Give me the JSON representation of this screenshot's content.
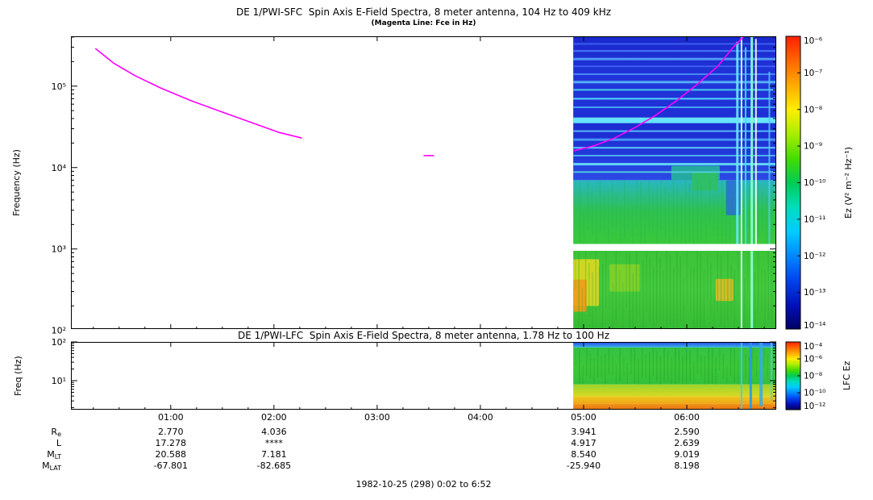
{
  "caption": {
    "text": "1982-10-25 (298) 0:02 to 6:52"
  },
  "ephemeris": {
    "rows": [
      {
        "label": "R",
        "sub": "e",
        "values": [
          "2.770",
          "4.036",
          "",
          "",
          "3.941",
          "2.590"
        ]
      },
      {
        "label": "L",
        "sub": "",
        "values": [
          "17.278",
          "****",
          "",
          "",
          "4.917",
          "2.639"
        ]
      },
      {
        "label": "M",
        "sub": "LT",
        "values": [
          "20.588",
          "7.181",
          "",
          "",
          "8.540",
          "9.019"
        ]
      },
      {
        "label": "M",
        "sub": "LAT",
        "values": [
          "-67.801",
          "-82.685",
          "",
          "",
          "-25.940",
          "8.198"
        ]
      }
    ],
    "value_hours": [
      1,
      2,
      3,
      4,
      5,
      6
    ]
  },
  "chart_data": [
    {
      "type": "heatmap",
      "name": "sfc-spectrogram",
      "title": "DE 1/PWI-SFC  Spin Axis E-Field Spectra, 8 meter antenna, 104 Hz to 409 kHz",
      "subtitle": "(Magenta Line: Fce in Hz)",
      "ylabel": "Frequency (Hz)",
      "y_scale": "log",
      "x_range_hours": [
        0.033,
        6.867
      ],
      "y_range_hz": [
        104,
        409000
      ],
      "ytick_exps": [
        5,
        4,
        3,
        2
      ],
      "xticks": [
        {
          "hour": 1,
          "label": "01:00"
        },
        {
          "hour": 2,
          "label": "02:00"
        },
        {
          "hour": 3,
          "label": "03:00"
        },
        {
          "hour": 4,
          "label": "04:00"
        },
        {
          "hour": 5,
          "label": "05:00"
        },
        {
          "hour": 6,
          "label": "06:00"
        }
      ],
      "data_start_hour": 4.9,
      "colorbar": {
        "label": "Ez (V² m⁻² Hz⁻¹)",
        "tick_exps": [
          -6,
          -7,
          -8,
          -9,
          -10,
          -11,
          -12,
          -13,
          -14
        ],
        "colors": [
          "#ff2000",
          "#ff6600",
          "#ffaa00",
          "#ffee00",
          "#aaee00",
          "#44dd00",
          "#00cc55",
          "#00ddbb",
          "#00ccff",
          "#0088ff",
          "#0044ee",
          "#0011bb",
          "#000066"
        ]
      },
      "fce_color": "#ff00ff",
      "fce_segments_hour_hz": [
        [
          [
            0.27,
            290000
          ],
          [
            0.45,
            190000
          ],
          [
            0.65,
            135000
          ],
          [
            0.9,
            95000
          ],
          [
            1.2,
            66000
          ],
          [
            1.5,
            48000
          ],
          [
            1.8,
            35000
          ],
          [
            2.05,
            27000
          ],
          [
            2.27,
            23000
          ]
        ],
        [
          [
            3.45,
            14000
          ],
          [
            3.55,
            14000
          ]
        ],
        [
          [
            4.9,
            16000
          ],
          [
            5.1,
            18500
          ],
          [
            5.3,
            23000
          ],
          [
            5.5,
            31000
          ],
          [
            5.7,
            44000
          ],
          [
            5.9,
            66000
          ],
          [
            6.1,
            105000
          ],
          [
            6.3,
            175000
          ],
          [
            6.45,
            300000
          ],
          [
            6.55,
            405000
          ]
        ]
      ],
      "bands": [
        {
          "f_top": 409000,
          "f_bot": 7000,
          "colors": [
            "#1a28cc",
            "#2136da",
            "#1c2cd2",
            "#2b4ae4"
          ]
        },
        {
          "f_top": 7000,
          "f_bot": 1150,
          "colors": [
            "#28b6c2",
            "#2fc24e",
            "#3ac83a"
          ]
        },
        {
          "f_top": 950,
          "f_bot": 104,
          "colors": [
            "#3cc438",
            "#44ca3e",
            "#36bc34"
          ]
        }
      ],
      "gaps": [
        {
          "f_top": 1150,
          "f_bot": 950
        }
      ],
      "stripes": [
        {
          "f": 330000,
          "h": 2,
          "color": "#3d62ee"
        },
        {
          "f": 270000,
          "h": 2,
          "color": "#4a7cf4"
        },
        {
          "f": 215000,
          "h": 3,
          "color": "#55a0fa"
        },
        {
          "f": 175000,
          "h": 2,
          "color": "#3d62ee"
        },
        {
          "f": 140000,
          "h": 2,
          "color": "#4a8cf6"
        },
        {
          "f": 112000,
          "h": 3,
          "color": "#58b4fa"
        },
        {
          "f": 90000,
          "h": 2,
          "color": "#4ad2ee"
        },
        {
          "f": 70000,
          "h": 2,
          "color": "#58dcfa"
        },
        {
          "f": 55000,
          "h": 2,
          "color": "#4aaaf4"
        },
        {
          "f": 38000,
          "h": 7,
          "color": "#6ceefc"
        },
        {
          "f": 28000,
          "h": 2,
          "color": "#58c0fa"
        },
        {
          "f": 22000,
          "h": 3,
          "color": "#4a9af4"
        },
        {
          "f": 17500,
          "h": 2,
          "color": "#5ed2fa"
        },
        {
          "f": 14000,
          "h": 2,
          "color": "#52b4ee"
        },
        {
          "f": 11000,
          "h": 3,
          "color": "#62dcf6"
        },
        {
          "f": 8800,
          "h": 2,
          "color": "#52ccdd"
        }
      ],
      "patches": [
        {
          "t0": 4.9,
          "t1": 5.15,
          "f_top": 750,
          "f_bot": 200,
          "color": "#ddd820",
          "opacity": 0.9
        },
        {
          "t0": 4.9,
          "t1": 5.03,
          "f_top": 420,
          "f_bot": 170,
          "color": "#f09c18",
          "opacity": 0.9
        },
        {
          "t0": 5.25,
          "t1": 5.55,
          "f_top": 650,
          "f_bot": 300,
          "color": "#8cd228",
          "opacity": 0.8
        },
        {
          "t0": 6.28,
          "t1": 6.45,
          "f_top": 430,
          "f_bot": 230,
          "color": "#e8bc24",
          "opacity": 0.85
        },
        {
          "t0": 5.85,
          "t1": 6.32,
          "f_top": 10500,
          "f_bot": 7000,
          "color": "#26b49a",
          "opacity": 0.9
        },
        {
          "t0": 6.05,
          "t1": 6.3,
          "f_top": 9000,
          "f_bot": 5200,
          "color": "#30c060",
          "opacity": 0.9
        },
        {
          "t0": 6.38,
          "t1": 6.52,
          "f_top": 7000,
          "f_bot": 2600,
          "color": "#2a6ad8",
          "opacity": 0.85
        }
      ],
      "bursts": [
        {
          "t": 6.49,
          "w": 3,
          "f_top": 350000,
          "f_bot": 1150,
          "color": "#66e8ff",
          "opacity": 0.9
        },
        {
          "t": 6.53,
          "w": 2,
          "f_top": 400000,
          "f_bot": 104,
          "color": "#ccffee",
          "opacity": 0.95
        },
        {
          "t": 6.57,
          "w": 2,
          "f_top": 300000,
          "f_bot": 1150,
          "color": "#44ddee",
          "opacity": 0.9
        },
        {
          "t": 6.63,
          "w": 3,
          "f_top": 400000,
          "f_bot": 104,
          "color": "#88ffcc",
          "opacity": 0.95
        },
        {
          "t": 6.67,
          "w": 2,
          "f_top": 380000,
          "f_bot": 1150,
          "color": "#ffffff",
          "opacity": 0.9
        },
        {
          "t": 6.8,
          "w": 2,
          "f_top": 150000,
          "f_bot": 1150,
          "color": "#55ccff",
          "opacity": 0.8
        }
      ],
      "striations": [
        {
          "f_top": 950,
          "f_bot": 104,
          "count": 60,
          "color": "#2aa22a",
          "opacity": 0.4
        },
        {
          "f_top": 7000,
          "f_bot": 1150,
          "count": 50,
          "color": "#1fae50",
          "opacity": 0.3
        }
      ]
    },
    {
      "type": "heatmap",
      "name": "lfc-spectrogram",
      "title": "DE 1/PWI-LFC  Spin Axis E-Field Spectra, 8 meter antenna, 1.78 Hz to 100 Hz",
      "ylabel": "Freq (Hz)",
      "y_scale": "log",
      "x_range_hours": [
        0.033,
        6.867
      ],
      "y_range_hz": [
        1.78,
        100
      ],
      "ytick_exps": [
        2,
        1
      ],
      "data_start_hour": 4.9,
      "colorbar": {
        "label": "LFC Ez",
        "tick_exps": [
          -4,
          -6,
          -8,
          -10,
          -12
        ],
        "colors": [
          "#ff2000",
          "#ff6600",
          "#ffaa00",
          "#ffee00",
          "#aaee00",
          "#44dd00",
          "#00cc55",
          "#00ddbb",
          "#00ccff",
          "#0088ff",
          "#0044ee",
          "#0011bb",
          "#000066"
        ]
      },
      "bands": [
        {
          "f_top": 100,
          "f_bot": 72,
          "colors": [
            "#2846e8",
            "#38b4e8"
          ]
        },
        {
          "f_top": 72,
          "f_bot": 8,
          "colors": [
            "#34c244",
            "#3cc83a",
            "#34c03a"
          ]
        },
        {
          "f_top": 8,
          "f_bot": 3.9,
          "colors": [
            "#9cd42c",
            "#d8d822"
          ]
        },
        {
          "f_top": 3.9,
          "f_bot": 2.5,
          "colors": [
            "#ecc81c",
            "#f0a418"
          ]
        },
        {
          "f_top": 2.5,
          "f_bot": 1.78,
          "colors": [
            "#f09418",
            "#e87410"
          ]
        }
      ],
      "bursts": [
        {
          "t": 6.53,
          "w": 2,
          "f_top": 100,
          "f_bot": 1.78,
          "color": "#44ccee",
          "opacity": 0.85
        },
        {
          "t": 6.62,
          "w": 3,
          "f_top": 100,
          "f_bot": 1.78,
          "color": "#2299ee",
          "opacity": 0.9
        },
        {
          "t": 6.72,
          "w": 4,
          "f_top": 100,
          "f_bot": 2.2,
          "color": "#33aaee",
          "opacity": 0.85
        },
        {
          "t": 6.82,
          "w": 2,
          "f_top": 100,
          "f_bot": 3,
          "color": "#55ccee",
          "opacity": 0.8
        }
      ],
      "striations": [
        {
          "f_top": 70,
          "f_bot": 8,
          "count": 55,
          "color": "#229922",
          "opacity": 0.45
        }
      ]
    }
  ]
}
